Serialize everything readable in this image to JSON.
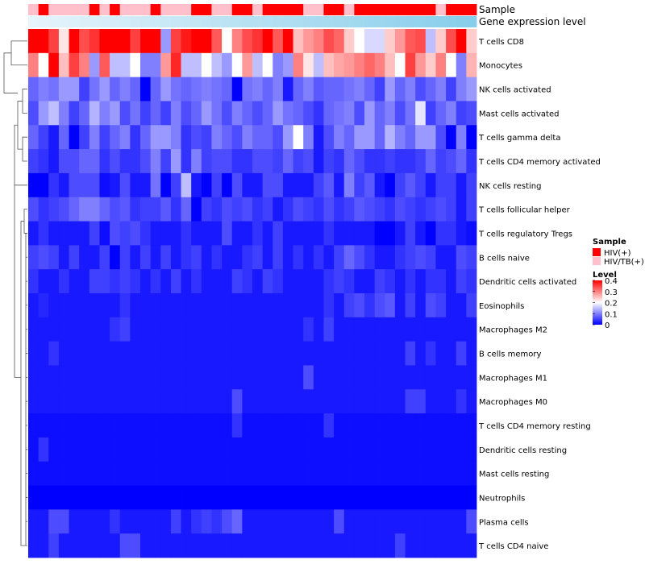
{
  "chart_data": {
    "type": "heatmap",
    "annotation_tracks": [
      "Sample",
      "Gene expression level"
    ],
    "rows": [
      "T cells CD8",
      "Monocytes",
      "NK cells activated",
      "Mast cells activated",
      "T cells gamma delta",
      "T cells CD4 memory activated",
      "NK cells resting",
      "T cells follicular helper",
      "T cells regulatory  Tregs",
      "B cells naive",
      "Dendritic cells activated",
      "Eosinophils",
      "Macrophages M2",
      "B cells memory",
      "Macrophages M1",
      "Macrophages M0",
      "T cells CD4 memory resting",
      "Dendritic cells resting",
      "Mast cells resting",
      "Neutrophils",
      "Plasma cells",
      "T cells CD4 naive"
    ],
    "samples": [
      "HIV/TB(+)",
      "HIV(+)",
      "HIV/TB(+)",
      "HIV/TB(+)",
      "HIV/TB(+)",
      "HIV/TB(+)",
      "HIV(+)",
      "HIV/TB(+)",
      "HIV(+)",
      "HIV/TB(+)",
      "HIV/TB(+)",
      "HIV/TB(+)",
      "HIV(+)",
      "HIV/TB(+)",
      "HIV/TB(+)",
      "HIV/TB(+)",
      "HIV(+)",
      "HIV(+)",
      "HIV/TB(+)",
      "HIV/TB(+)",
      "HIV(+)",
      "HIV(+)",
      "HIV/TB(+)",
      "HIV(+)",
      "HIV(+)",
      "HIV(+)",
      "HIV(+)",
      "HIV/TB(+)",
      "HIV/TB(+)",
      "HIV(+)",
      "HIV(+)",
      "HIV/TB(+)",
      "HIV(+)",
      "HIV(+)",
      "HIV(+)",
      "HIV(+)",
      "HIV(+)",
      "HIV(+)",
      "HIV(+)",
      "HIV(+)",
      "HIV/TB(+)",
      "HIV(+)",
      "HIV(+)",
      "HIV(+)"
    ],
    "expression_level": [
      0.0,
      0.02,
      0.05,
      0.07,
      0.09,
      0.12,
      0.14,
      0.16,
      0.19,
      0.21,
      0.23,
      0.26,
      0.28,
      0.3,
      0.33,
      0.35,
      0.37,
      0.4,
      0.42,
      0.44,
      0.47,
      0.49,
      0.51,
      0.53,
      0.56,
      0.58,
      0.6,
      0.63,
      0.65,
      0.67,
      0.7,
      0.72,
      0.74,
      0.77,
      0.79,
      0.81,
      0.84,
      0.86,
      0.88,
      0.91,
      0.93,
      0.95,
      0.98,
      1.0
    ],
    "values": [
      [
        0.4,
        0.42,
        0.35,
        0.22,
        0.4,
        0.34,
        0.36,
        0.4,
        0.4,
        0.4,
        0.35,
        0.4,
        0.4,
        0.12,
        0.35,
        0.38,
        0.4,
        0.4,
        0.33,
        0.2,
        0.3,
        0.34,
        0.36,
        0.4,
        0.33,
        0.4,
        0.25,
        0.28,
        0.3,
        0.34,
        0.32,
        0.24,
        0.2,
        0.17,
        0.17,
        0.24,
        0.28,
        0.33,
        0.34,
        0.15,
        0.24,
        0.34,
        0.4,
        0.24
      ],
      [
        0.3,
        0.2,
        0.4,
        0.25,
        0.35,
        0.3,
        0.12,
        0.33,
        0.15,
        0.15,
        0.2,
        0.1,
        0.1,
        0.28,
        0.37,
        0.15,
        0.15,
        0.2,
        0.15,
        0.12,
        0.2,
        0.28,
        0.15,
        0.2,
        0.1,
        0.12,
        0.3,
        0.22,
        0.15,
        0.25,
        0.27,
        0.28,
        0.3,
        0.32,
        0.3,
        0.25,
        0.2,
        0.35,
        0.28,
        0.24,
        0.3,
        0.2,
        0.1,
        0.26
      ],
      [
        0.08,
        0.1,
        0.09,
        0.12,
        0.12,
        0.05,
        0.09,
        0.12,
        0.08,
        0.1,
        0.08,
        0.0,
        0.08,
        0.12,
        0.09,
        0.08,
        0.09,
        0.1,
        0.09,
        0.08,
        0.0,
        0.09,
        0.1,
        0.08,
        0.1,
        0.02,
        0.08,
        0.1,
        0.07,
        0.08,
        0.08,
        0.09,
        0.1,
        0.08,
        0.05,
        0.12,
        0.08,
        0.1,
        0.06,
        0.08,
        0.1,
        0.05,
        0.1,
        0.12
      ],
      [
        0.06,
        0.12,
        0.15,
        0.1,
        0.05,
        0.08,
        0.14,
        0.1,
        0.12,
        0.06,
        0.09,
        0.05,
        0.08,
        0.05,
        0.1,
        0.06,
        0.08,
        0.12,
        0.09,
        0.06,
        0.1,
        0.08,
        0.06,
        0.08,
        0.12,
        0.09,
        0.08,
        0.06,
        0.04,
        0.08,
        0.09,
        0.1,
        0.06,
        0.12,
        0.08,
        0.1,
        0.06,
        0.09,
        0.18,
        0.05,
        0.08,
        0.1,
        0.05,
        0.06
      ],
      [
        0.08,
        0.05,
        0.02,
        0.08,
        0.0,
        0.05,
        0.1,
        0.05,
        0.08,
        0.1,
        0.04,
        0.08,
        0.12,
        0.12,
        0.1,
        0.04,
        0.06,
        0.05,
        0.1,
        0.08,
        0.06,
        0.1,
        0.08,
        0.08,
        0.06,
        0.12,
        0.2,
        0.1,
        0.02,
        0.06,
        0.1,
        0.08,
        0.12,
        0.12,
        0.08,
        0.14,
        0.1,
        0.08,
        0.12,
        0.12,
        0.06,
        0.0,
        0.1,
        0.0
      ],
      [
        0.05,
        0.04,
        0.02,
        0.06,
        0.06,
        0.08,
        0.08,
        0.04,
        0.06,
        0.04,
        0.04,
        0.06,
        0.1,
        0.05,
        0.12,
        0.04,
        0.1,
        0.05,
        0.06,
        0.06,
        0.04,
        0.04,
        0.06,
        0.06,
        0.05,
        0.08,
        0.05,
        0.06,
        0.02,
        0.05,
        0.04,
        0.08,
        0.06,
        0.04,
        0.04,
        0.05,
        0.04,
        0.04,
        0.05,
        0.08,
        0.05,
        0.06,
        0.08,
        0.04
      ],
      [
        0.0,
        0.0,
        0.04,
        0.02,
        0.06,
        0.06,
        0.06,
        0.01,
        0.02,
        0.06,
        0.02,
        0.02,
        0.09,
        0.0,
        0.05,
        0.15,
        0.02,
        0.0,
        0.05,
        0.0,
        0.06,
        0.02,
        0.02,
        0.06,
        0.06,
        0.02,
        0.02,
        0.02,
        0.05,
        0.07,
        0.02,
        0.1,
        0.05,
        0.07,
        0.02,
        0.0,
        0.05,
        0.07,
        0.05,
        0.02,
        0.05,
        0.05,
        0.02,
        0.05
      ],
      [
        0.06,
        0.04,
        0.05,
        0.06,
        0.08,
        0.1,
        0.1,
        0.08,
        0.06,
        0.07,
        0.04,
        0.05,
        0.05,
        0.07,
        0.04,
        0.08,
        0.0,
        0.05,
        0.04,
        0.06,
        0.05,
        0.06,
        0.04,
        0.05,
        0.02,
        0.04,
        0.06,
        0.05,
        0.04,
        0.06,
        0.04,
        0.05,
        0.07,
        0.06,
        0.05,
        0.04,
        0.06,
        0.05,
        0.04,
        0.05,
        0.06,
        0.05,
        0.02,
        0.05
      ],
      [
        0.02,
        0.04,
        0.02,
        0.02,
        0.02,
        0.02,
        0.05,
        0.01,
        0.06,
        0.05,
        0.06,
        0.04,
        0.02,
        0.02,
        0.02,
        0.04,
        0.02,
        0.02,
        0.02,
        0.06,
        0.02,
        0.02,
        0.04,
        0.02,
        0.05,
        0.02,
        0.02,
        0.02,
        0.02,
        0.04,
        0.02,
        0.02,
        0.02,
        0.02,
        0.0,
        0.0,
        0.02,
        0.05,
        0.02,
        0.0,
        0.04,
        0.04,
        0.02,
        0.01
      ],
      [
        0.05,
        0.06,
        0.05,
        0.02,
        0.05,
        0.02,
        0.02,
        0.05,
        0.0,
        0.05,
        0.02,
        0.05,
        0.02,
        0.05,
        0.02,
        0.04,
        0.05,
        0.02,
        0.04,
        0.02,
        0.02,
        0.04,
        0.05,
        0.02,
        0.05,
        0.02,
        0.04,
        0.02,
        0.04,
        0.02,
        0.05,
        0.08,
        0.06,
        0.04,
        0.02,
        0.02,
        0.04,
        0.05,
        0.06,
        0.05,
        0.02,
        0.02,
        0.06,
        0.05
      ],
      [
        0.04,
        0.02,
        0.02,
        0.04,
        0.02,
        0.02,
        0.05,
        0.05,
        0.04,
        0.05,
        0.04,
        0.02,
        0.04,
        0.02,
        0.05,
        0.02,
        0.04,
        0.02,
        0.02,
        0.02,
        0.05,
        0.04,
        0.02,
        0.05,
        0.04,
        0.02,
        0.02,
        0.02,
        0.02,
        0.04,
        0.05,
        0.04,
        0.02,
        0.02,
        0.05,
        0.04,
        0.02,
        0.04,
        0.02,
        0.04,
        0.04,
        0.02,
        0.05,
        0.04
      ],
      [
        0.02,
        0.03,
        0.02,
        0.02,
        0.02,
        0.02,
        0.02,
        0.02,
        0.02,
        0.04,
        0.02,
        0.02,
        0.02,
        0.02,
        0.02,
        0.02,
        0.02,
        0.02,
        0.02,
        0.02,
        0.02,
        0.02,
        0.02,
        0.02,
        0.02,
        0.02,
        0.02,
        0.02,
        0.02,
        0.04,
        0.02,
        0.05,
        0.06,
        0.04,
        0.06,
        0.07,
        0.02,
        0.05,
        0.02,
        0.06,
        0.05,
        0.02,
        0.02,
        0.05
      ],
      [
        0.02,
        0.02,
        0.02,
        0.02,
        0.02,
        0.02,
        0.02,
        0.02,
        0.04,
        0.05,
        0.02,
        0.02,
        0.02,
        0.02,
        0.02,
        0.02,
        0.02,
        0.02,
        0.02,
        0.02,
        0.02,
        0.02,
        0.02,
        0.02,
        0.02,
        0.02,
        0.02,
        0.04,
        0.02,
        0.05,
        0.02,
        0.02,
        0.02,
        0.02,
        0.02,
        0.02,
        0.02,
        0.02,
        0.02,
        0.02,
        0.02,
        0.02,
        0.02,
        0.02
      ],
      [
        0.02,
        0.02,
        0.04,
        0.02,
        0.02,
        0.02,
        0.02,
        0.02,
        0.02,
        0.02,
        0.02,
        0.02,
        0.02,
        0.02,
        0.02,
        0.02,
        0.02,
        0.02,
        0.02,
        0.02,
        0.02,
        0.02,
        0.02,
        0.02,
        0.02,
        0.02,
        0.02,
        0.02,
        0.02,
        0.02,
        0.02,
        0.02,
        0.02,
        0.02,
        0.02,
        0.02,
        0.02,
        0.05,
        0.02,
        0.04,
        0.02,
        0.02,
        0.05,
        0.02
      ],
      [
        0.02,
        0.02,
        0.02,
        0.02,
        0.02,
        0.02,
        0.02,
        0.02,
        0.02,
        0.02,
        0.02,
        0.02,
        0.02,
        0.02,
        0.02,
        0.02,
        0.02,
        0.02,
        0.02,
        0.02,
        0.02,
        0.02,
        0.02,
        0.02,
        0.02,
        0.02,
        0.02,
        0.06,
        0.02,
        0.02,
        0.02,
        0.02,
        0.02,
        0.02,
        0.02,
        0.02,
        0.02,
        0.02,
        0.02,
        0.02,
        0.02,
        0.02,
        0.02,
        0.02
      ],
      [
        0.02,
        0.02,
        0.02,
        0.02,
        0.02,
        0.02,
        0.02,
        0.02,
        0.02,
        0.02,
        0.02,
        0.02,
        0.02,
        0.02,
        0.02,
        0.02,
        0.02,
        0.02,
        0.02,
        0.02,
        0.06,
        0.02,
        0.02,
        0.02,
        0.02,
        0.02,
        0.02,
        0.02,
        0.02,
        0.02,
        0.02,
        0.02,
        0.02,
        0.02,
        0.02,
        0.02,
        0.02,
        0.05,
        0.05,
        0.02,
        0.02,
        0.02,
        0.04,
        0.02
      ],
      [
        0.01,
        0.01,
        0.01,
        0.01,
        0.01,
        0.01,
        0.01,
        0.01,
        0.01,
        0.01,
        0.01,
        0.01,
        0.01,
        0.01,
        0.01,
        0.01,
        0.01,
        0.01,
        0.01,
        0.01,
        0.04,
        0.01,
        0.01,
        0.01,
        0.01,
        0.01,
        0.01,
        0.01,
        0.01,
        0.04,
        0.01,
        0.01,
        0.01,
        0.01,
        0.01,
        0.01,
        0.01,
        0.01,
        0.01,
        0.01,
        0.01,
        0.01,
        0.01,
        0.01
      ],
      [
        0.01,
        0.04,
        0.01,
        0.01,
        0.01,
        0.01,
        0.01,
        0.01,
        0.01,
        0.01,
        0.01,
        0.01,
        0.01,
        0.01,
        0.01,
        0.01,
        0.01,
        0.01,
        0.01,
        0.01,
        0.01,
        0.01,
        0.01,
        0.01,
        0.01,
        0.01,
        0.01,
        0.01,
        0.01,
        0.01,
        0.01,
        0.01,
        0.01,
        0.01,
        0.01,
        0.01,
        0.01,
        0.01,
        0.01,
        0.01,
        0.01,
        0.01,
        0.01,
        0.01
      ],
      [
        0.01,
        0.01,
        0.01,
        0.01,
        0.01,
        0.01,
        0.01,
        0.01,
        0.01,
        0.01,
        0.01,
        0.01,
        0.01,
        0.01,
        0.01,
        0.01,
        0.01,
        0.01,
        0.01,
        0.01,
        0.01,
        0.01,
        0.01,
        0.01,
        0.01,
        0.01,
        0.01,
        0.01,
        0.01,
        0.01,
        0.01,
        0.01,
        0.01,
        0.01,
        0.01,
        0.01,
        0.01,
        0.01,
        0.01,
        0.01,
        0.01,
        0.01,
        0.01,
        0.01
      ],
      [
        0.0,
        0.0,
        0.0,
        0.0,
        0.0,
        0.0,
        0.0,
        0.0,
        0.0,
        0.0,
        0.0,
        0.0,
        0.0,
        0.0,
        0.0,
        0.0,
        0.0,
        0.0,
        0.0,
        0.0,
        0.0,
        0.0,
        0.0,
        0.0,
        0.0,
        0.0,
        0.0,
        0.0,
        0.0,
        0.0,
        0.0,
        0.0,
        0.0,
        0.0,
        0.0,
        0.0,
        0.0,
        0.0,
        0.0,
        0.0,
        0.0,
        0.0,
        0.0,
        0.0
      ],
      [
        0.02,
        0.02,
        0.06,
        0.06,
        0.02,
        0.02,
        0.02,
        0.02,
        0.04,
        0.02,
        0.02,
        0.02,
        0.02,
        0.02,
        0.05,
        0.02,
        0.04,
        0.05,
        0.04,
        0.06,
        0.08,
        0.02,
        0.02,
        0.02,
        0.02,
        0.02,
        0.02,
        0.02,
        0.02,
        0.02,
        0.06,
        0.02,
        0.02,
        0.02,
        0.02,
        0.02,
        0.02,
        0.02,
        0.02,
        0.02,
        0.02,
        0.02,
        0.02,
        0.06
      ],
      [
        0.02,
        0.02,
        0.05,
        0.02,
        0.02,
        0.02,
        0.02,
        0.02,
        0.02,
        0.06,
        0.06,
        0.02,
        0.02,
        0.02,
        0.02,
        0.02,
        0.02,
        0.02,
        0.02,
        0.02,
        0.02,
        0.02,
        0.02,
        0.02,
        0.02,
        0.02,
        0.02,
        0.02,
        0.02,
        0.02,
        0.02,
        0.02,
        0.02,
        0.02,
        0.02,
        0.02,
        0.05,
        0.02,
        0.02,
        0.02,
        0.02,
        0.02,
        0.02,
        0.02
      ]
    ],
    "colorscale": {
      "low": "#0000ff",
      "mid": "#ffffff",
      "high": "#ff0000",
      "min": 0,
      "mid_value": 0.2,
      "max": 0.4
    },
    "legend": {
      "sample_title": "Sample",
      "sample_entries": [
        {
          "label": "HIV(+)",
          "color": "#ff0000"
        },
        {
          "label": "HIV/TB(+)",
          "color": "#ffc0cb"
        }
      ],
      "level_title": "Level",
      "level_ticks": [
        0.4,
        0.3,
        0.2,
        0.1,
        0
      ],
      "level_tick_labels": [
        "0.4",
        "0.3",
        "0.2",
        "0.1",
        "0"
      ]
    },
    "expression_colors": {
      "low": "#e6f4fb",
      "high": "#87ceeb"
    }
  }
}
